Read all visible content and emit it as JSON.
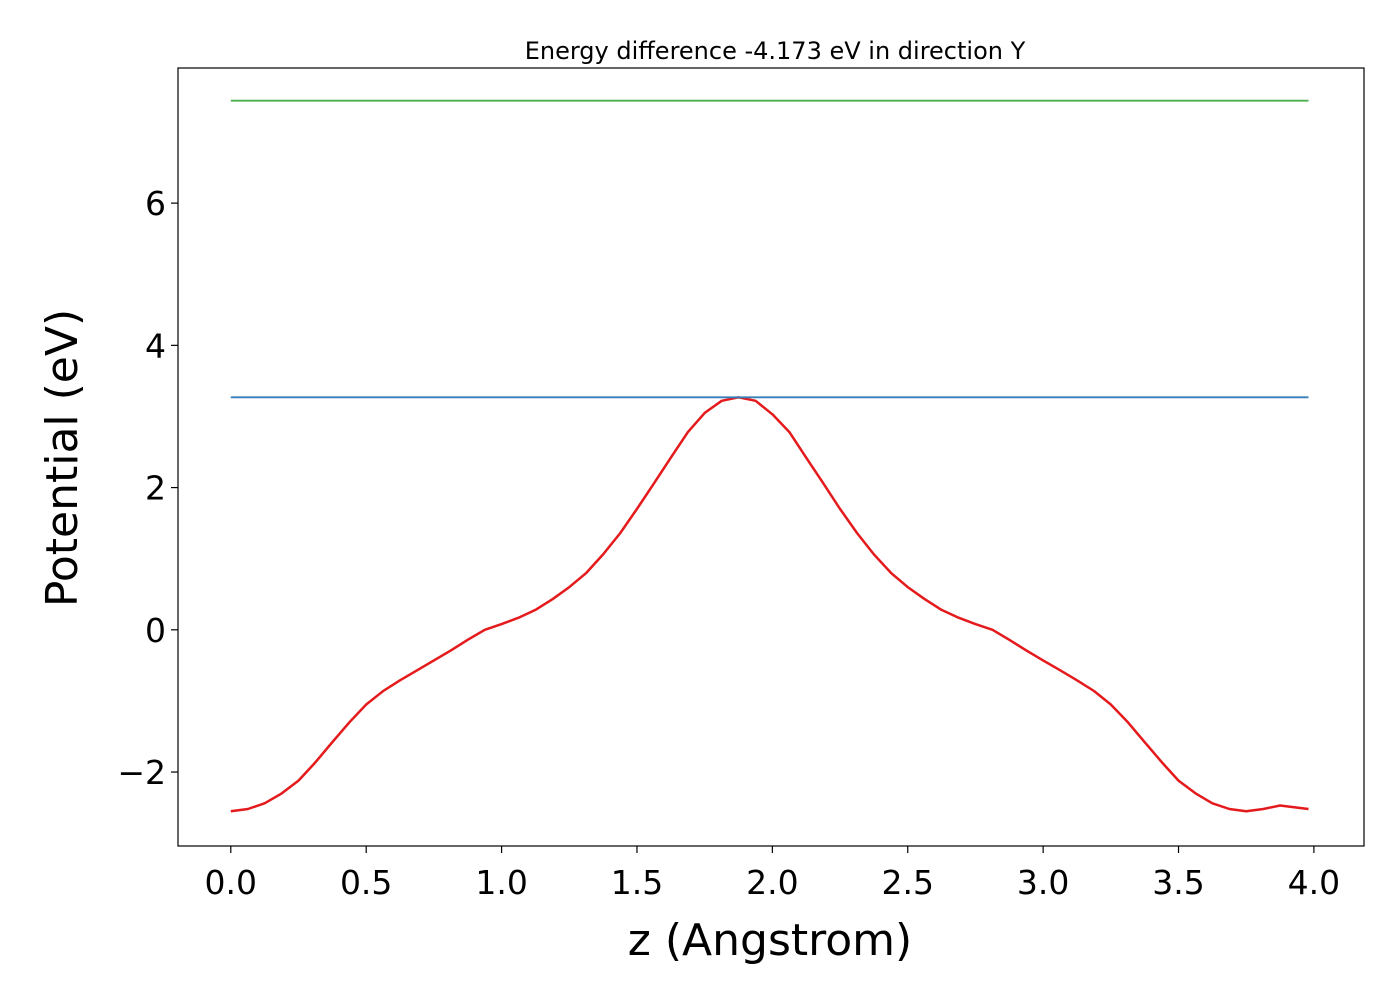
{
  "colors": {
    "background": "#ffffff",
    "axes": "#000000",
    "potential_line": "#e41a1c",
    "level_blue": "#377eb8",
    "level_green": "#4daf4a"
  },
  "chart_data": {
    "type": "line",
    "title": "Energy difference -4.173 eV in direction Y",
    "xlabel": "z (Angstrom)",
    "ylabel": "Potential (eV)",
    "xlim": [
      -0.195,
      4.185
    ],
    "ylim": [
      -3.04,
      7.9
    ],
    "xticks": [
      0.0,
      0.5,
      1.0,
      1.5,
      2.0,
      2.5,
      3.0,
      3.5,
      4.0
    ],
    "xtick_labels": [
      "0.0",
      "0.5",
      "1.0",
      "1.5",
      "2.0",
      "2.5",
      "3.0",
      "3.5",
      "4.0"
    ],
    "yticks": [
      -2,
      0,
      2,
      4,
      6
    ],
    "ytick_labels": [
      "−2",
      "0",
      "2",
      "4",
      "6"
    ],
    "grid": false,
    "legend": "none",
    "series": [
      {
        "x": [
          0.0,
          0.063,
          0.125,
          0.188,
          0.25,
          0.313,
          0.375,
          0.438,
          0.5,
          0.563,
          0.625,
          0.688,
          0.75,
          0.813,
          0.875,
          0.938,
          1.0,
          1.063,
          1.125,
          1.188,
          1.25,
          1.313,
          1.375,
          1.438,
          1.5,
          1.563,
          1.625,
          1.688,
          1.75,
          1.813,
          1.875,
          1.938,
          2.0,
          2.063,
          2.125,
          2.188,
          2.25,
          2.313,
          2.375,
          2.438,
          2.5,
          2.563,
          2.625,
          2.688,
          2.75,
          2.813,
          2.875,
          2.938,
          3.0,
          3.063,
          3.125,
          3.188,
          3.25,
          3.313,
          3.375,
          3.438,
          3.5,
          3.563,
          3.625,
          3.688,
          3.75,
          3.813,
          3.875,
          3.938,
          3.98
        ],
        "values": [
          -2.55,
          -2.52,
          -2.44,
          -2.3,
          -2.12,
          -1.86,
          -1.58,
          -1.3,
          -1.05,
          -0.86,
          -0.71,
          -0.57,
          -0.43,
          -0.29,
          -0.14,
          0.0,
          0.08,
          0.17,
          0.28,
          0.43,
          0.6,
          0.8,
          1.06,
          1.36,
          1.7,
          2.06,
          2.42,
          2.78,
          3.05,
          3.22,
          3.27,
          3.22,
          3.03,
          2.78,
          2.42,
          2.06,
          1.7,
          1.36,
          1.06,
          0.8,
          0.6,
          0.43,
          0.28,
          0.17,
          0.08,
          0.0,
          -0.14,
          -0.29,
          -0.43,
          -0.57,
          -0.71,
          -0.86,
          -1.05,
          -1.3,
          -1.58,
          -1.86,
          -2.12,
          -2.3,
          -2.44,
          -2.52,
          -2.55,
          -2.52,
          -2.47,
          -2.5,
          -2.52
        ],
        "color": "#e41a1c"
      },
      {
        "x": [
          0.0,
          3.98
        ],
        "values": [
          3.27,
          3.27
        ],
        "color": "#377eb8"
      },
      {
        "x": [
          0.0,
          3.98
        ],
        "values": [
          7.44,
          7.44
        ],
        "color": "#4daf4a"
      }
    ]
  }
}
